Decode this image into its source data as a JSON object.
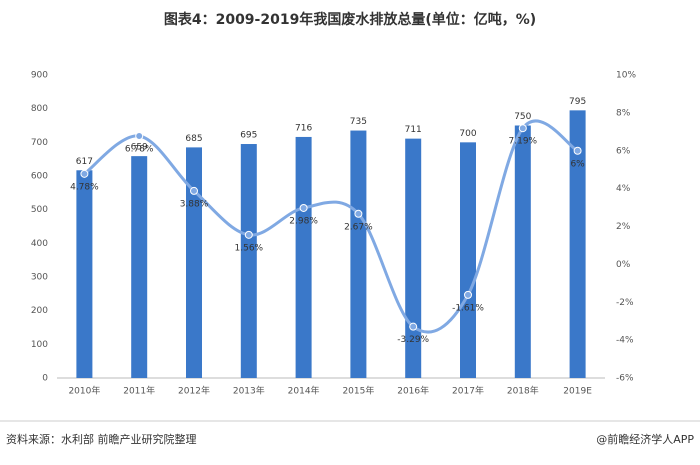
{
  "chart_data": {
    "type": "bar_line",
    "title": "图表4：2009-2019年我国废水排放总量(单位：亿吨，%)",
    "categories": [
      "2010年",
      "2011年",
      "2012年",
      "2013年",
      "2014年",
      "2015年",
      "2016年",
      "2017年",
      "2018年",
      "2019E"
    ],
    "series": [
      {
        "type": "bar",
        "color": "#3a78c9",
        "values": [
          617,
          659,
          685,
          695,
          716,
          735,
          711,
          700,
          750,
          795
        ]
      },
      {
        "type": "line",
        "axis": "y2",
        "color": "#80a9e3",
        "values": [
          4.78,
          6.78,
          3.88,
          1.56,
          2.98,
          2.67,
          -3.29,
          -1.61,
          7.19,
          6
        ],
        "value_labels": [
          "4.78%",
          "6.78%",
          "3.88%",
          "1.56%",
          "2.98%",
          "2.67%",
          "-3.29%",
          "-1.61%",
          "7.19%",
          "6%"
        ]
      }
    ],
    "ylim": [
      0,
      900
    ],
    "yticks": [
      0,
      100,
      200,
      300,
      400,
      500,
      600,
      700,
      800,
      900
    ],
    "y2lim": [
      -6,
      10
    ],
    "y2ticks": [
      {
        "value": -6,
        "label": "-6%"
      },
      {
        "value": -4,
        "label": "-4%"
      },
      {
        "value": -2,
        "label": "-2%"
      },
      {
        "value": 0,
        "label": "0%"
      },
      {
        "value": 2,
        "label": "2%"
      },
      {
        "value": 4,
        "label": "4%"
      },
      {
        "value": 6,
        "label": "6%"
      },
      {
        "value": 8,
        "label": "8%"
      },
      {
        "value": 10,
        "label": "10%"
      }
    ],
    "source": "资料来源：水利部 前瞻产业研究院整理",
    "credit": "@前瞻经济学人APP"
  }
}
